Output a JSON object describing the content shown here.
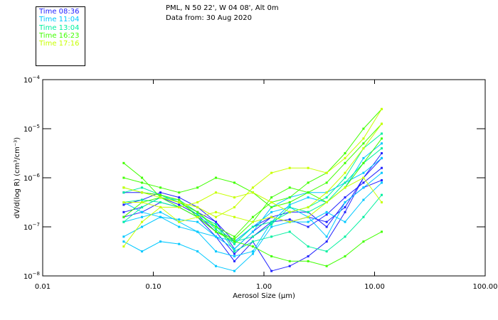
{
  "title": {
    "line1": "PML, N 50 22', W 04 08', Alt 0m",
    "line2": "Data from: 30 Aug 2020"
  },
  "chart_data": {
    "type": "line",
    "xscale": "log",
    "yscale": "log",
    "xlabel": "Aerosol Size (µm)",
    "ylabel": "dV/d(log R) (cm³/cm⁻³)",
    "xlim": [
      0.01,
      100
    ],
    "ylim": [
      1e-08,
      0.0001
    ],
    "xticks": [
      {
        "v": 0.01,
        "label": "0.01"
      },
      {
        "v": 0.1,
        "label": "0.10"
      },
      {
        "v": 1,
        "label": "1.00"
      },
      {
        "v": 10,
        "label": "10.00"
      },
      {
        "v": 100,
        "label": "100.00"
      }
    ],
    "yticks": [
      {
        "exp": -4
      },
      {
        "exp": -5
      },
      {
        "exp": -6
      },
      {
        "exp": -7
      },
      {
        "exp": -8
      }
    ],
    "legend_position": "top-left",
    "x": [
      0.054,
      0.079,
      0.116,
      0.171,
      0.251,
      0.368,
      0.541,
      0.794,
      1.17,
      1.71,
      2.51,
      3.69,
      5.41,
      7.94,
      11.6
    ],
    "y_unit_note": "values are log10 of dV/d(log R)",
    "series": [
      {
        "name": "Time 08:36",
        "color": "#2222ff",
        "scans": [
          [
            -6.3,
            -6.3,
            -6.35,
            -6.5,
            -6.7,
            -6.9,
            -7.45,
            -7.1,
            -6.8,
            -6.9,
            -6.8,
            -6.9,
            -6.6,
            -6.0,
            -5.6
          ],
          [
            -6.7,
            -6.6,
            -6.4,
            -6.55,
            -6.75,
            -7.1,
            -7.55,
            -7.2,
            -6.9,
            -6.85,
            -7.0,
            -6.75,
            -6.4,
            -6.1,
            -5.8
          ],
          [
            -6.55,
            -6.45,
            -6.3,
            -6.4,
            -6.6,
            -6.9,
            -7.3,
            -7.0,
            -6.8,
            -6.7,
            -6.7,
            -7.0,
            -6.5,
            -6.2,
            -6.05
          ],
          [
            -6.8,
            -6.7,
            -6.5,
            -6.6,
            -6.8,
            -7.2,
            -7.7,
            -7.3,
            -7.9,
            -7.8,
            -7.6,
            -7.3,
            -6.7,
            -6.0,
            -5.5
          ]
        ]
      },
      {
        "name": "Time 11:04",
        "color": "#00c8ff",
        "scans": [
          [
            -7.2,
            -7.0,
            -6.8,
            -6.85,
            -6.9,
            -7.2,
            -7.45,
            -7.1,
            -6.6,
            -6.4,
            -6.3,
            -6.3,
            -6.1,
            -5.9,
            -5.6
          ],
          [
            -7.3,
            -7.5,
            -7.3,
            -7.35,
            -7.5,
            -7.8,
            -7.9,
            -7.55,
            -7.0,
            -6.9,
            -6.9,
            -6.7,
            -6.9,
            -6.45,
            -6.1
          ],
          [
            -6.5,
            -6.7,
            -6.8,
            -7.0,
            -7.1,
            -7.5,
            -7.6,
            -7.5,
            -6.9,
            -6.55,
            -6.4,
            -6.5,
            -6.2,
            -5.6,
            -5.3
          ],
          [
            -6.9,
            -6.8,
            -6.7,
            -6.9,
            -7.1,
            -7.2,
            -7.3,
            -7.0,
            -6.7,
            -6.6,
            -6.8,
            -7.2,
            -6.5,
            -6.2,
            -5.9
          ]
        ]
      },
      {
        "name": "Time 13:04",
        "color": "#00f0a0",
        "scans": [
          [
            -6.5,
            -6.45,
            -6.5,
            -6.6,
            -6.8,
            -7.0,
            -7.3,
            -7.2,
            -6.95,
            -6.6,
            -6.7,
            -6.5,
            -6.1,
            -5.7,
            -5.4
          ],
          [
            -6.9,
            -6.6,
            -6.4,
            -6.45,
            -6.7,
            -7.05,
            -7.35,
            -7.0,
            -6.9,
            -6.7,
            -6.6,
            -6.4,
            -6.0,
            -5.4,
            -5.1
          ],
          [
            -6.3,
            -6.2,
            -6.35,
            -6.5,
            -6.75,
            -6.95,
            -7.5,
            -7.3,
            -7.2,
            -7.1,
            -7.4,
            -7.5,
            -7.2,
            -6.8,
            -6.35
          ]
        ]
      },
      {
        "name": "Time 16:23",
        "color": "#40ff00",
        "scans": [
          [
            -5.7,
            -6.0,
            -6.4,
            -6.5,
            -6.7,
            -7.0,
            -7.2,
            -6.8,
            -6.5,
            -6.4,
            -6.1,
            -5.9,
            -5.5,
            -5.0,
            -4.6
          ],
          [
            -6.0,
            -6.1,
            -6.2,
            -6.3,
            -6.2,
            -6.0,
            -6.1,
            -6.3,
            -6.6,
            -6.5,
            -6.3,
            -6.1,
            -5.7,
            -5.3,
            -4.9
          ],
          [
            -6.8,
            -6.5,
            -6.4,
            -6.6,
            -6.8,
            -7.1,
            -7.3,
            -7.4,
            -7.6,
            -7.7,
            -7.7,
            -7.8,
            -7.6,
            -7.3,
            -7.1
          ],
          [
            -6.2,
            -6.3,
            -6.35,
            -6.45,
            -6.8,
            -7.1,
            -7.25,
            -6.9,
            -6.4,
            -6.2,
            -6.3,
            -6.5,
            -6.2,
            -5.7,
            -5.2
          ]
        ]
      },
      {
        "name": "Time 17:16",
        "color": "#c8ff00",
        "scans": [
          [
            -7.4,
            -6.9,
            -6.6,
            -6.6,
            -6.5,
            -6.3,
            -6.4,
            -6.3,
            -6.5,
            -6.7,
            -6.6,
            -6.3,
            -5.9,
            -5.4,
            -4.9
          ],
          [
            -6.2,
            -6.3,
            -6.4,
            -6.5,
            -6.6,
            -6.8,
            -6.6,
            -6.2,
            -5.9,
            -5.8,
            -5.8,
            -5.9,
            -5.6,
            -5.2,
            -4.6
          ],
          [
            -6.5,
            -6.5,
            -6.6,
            -6.9,
            -6.8,
            -6.7,
            -6.8,
            -6.9,
            -6.8,
            -6.9,
            -6.8,
            -6.5,
            -6.2,
            -6.0,
            -6.5
          ]
        ]
      }
    ]
  }
}
